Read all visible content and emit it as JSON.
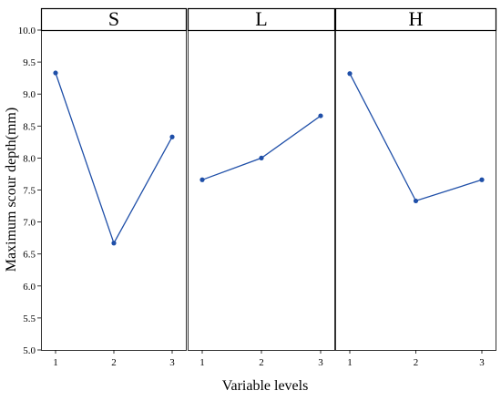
{
  "chart_data": {
    "type": "line",
    "xlabel": "Variable levels",
    "ylabel": "Maximum scour depth(mm)",
    "ylim": [
      5.0,
      10.0
    ],
    "y_ticks": [
      "5.0",
      "5.5",
      "6.0",
      "6.5",
      "7.0",
      "7.5",
      "8.0",
      "8.5",
      "9.0",
      "9.5",
      "10.0"
    ],
    "x_ticks": [
      "1",
      "2",
      "3"
    ],
    "grid": false,
    "line_color": "#1f4fa8",
    "panels": [
      {
        "title": "S",
        "x": [
          1,
          2,
          3
        ],
        "values": [
          9.33,
          6.67,
          8.33
        ]
      },
      {
        "title": "L",
        "x": [
          1,
          2,
          3
        ],
        "values": [
          7.66,
          8.0,
          8.66
        ]
      },
      {
        "title": "H",
        "x": [
          1,
          2,
          3
        ],
        "values": [
          9.32,
          7.33,
          7.66
        ]
      }
    ]
  }
}
